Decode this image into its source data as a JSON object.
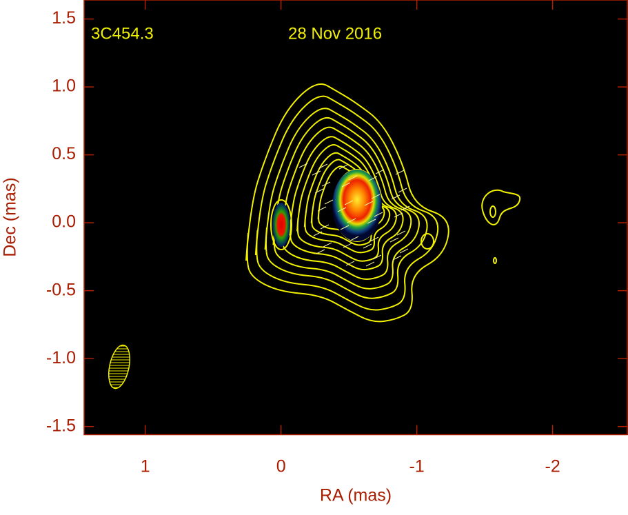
{
  "chart_data": {
    "type": "image",
    "annotations": [
      "3C454.3",
      "28 Nov 2016"
    ],
    "xlabel": "RA (mas)",
    "ylabel": "Dec (mas)",
    "xlim": [
      1.45,
      -2.55
    ],
    "xticks": [
      1,
      0,
      -1,
      -2
    ],
    "ylim": [
      -1.56,
      1.64
    ],
    "yticks": [
      1.5,
      {
        "value": 1,
        "label": "1.0"
      },
      0.5,
      {
        "value": 0,
        "label": "0.0"
      },
      -0.5,
      {
        "value": -1,
        "label": "-1.0"
      },
      -1.5
    ]
  }
}
